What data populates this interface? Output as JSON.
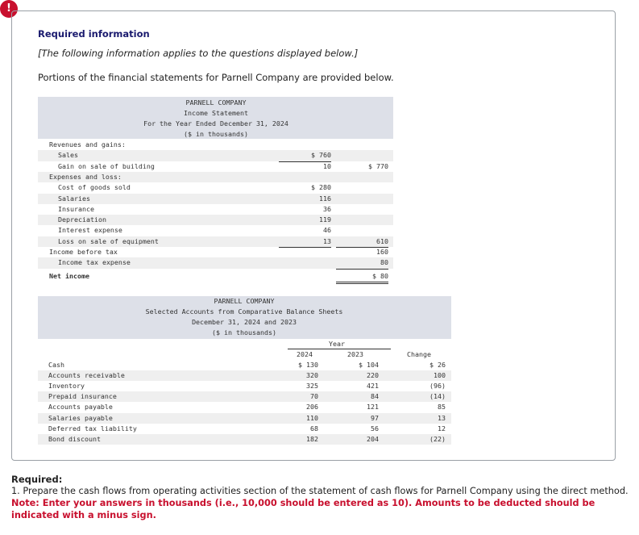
{
  "icon": "!",
  "heading": "Required information",
  "intro": "[The following information applies to the questions displayed below.]",
  "lead": "Portions of the financial statements for Parnell Company are provided below.",
  "income_statement": {
    "title": [
      "PARNELL COMPANY",
      "Income Statement",
      "For the Year Ended December 31, 2024",
      "($ in thousands)"
    ],
    "rows": [
      {
        "label": "Revenues and gains:"
      },
      {
        "label": "Sales",
        "amount": "$ 760"
      },
      {
        "label": "Gain on sale of building",
        "amount": "10",
        "total": "$ 770"
      },
      {
        "label": "Expenses and loss:"
      },
      {
        "label": "Cost of goods sold",
        "amount": "$ 280"
      },
      {
        "label": "Salaries",
        "amount": "116"
      },
      {
        "label": "Insurance",
        "amount": "36"
      },
      {
        "label": "Depreciation",
        "amount": "119"
      },
      {
        "label": "Interest expense",
        "amount": "46"
      },
      {
        "label": "Loss on sale of equipment",
        "amount": "13",
        "total": "610"
      },
      {
        "label": "Income before tax",
        "total": "160"
      },
      {
        "label": "Income tax expense",
        "total": "80"
      },
      {
        "label": "Net income",
        "total": "$ 80"
      }
    ]
  },
  "balance_sheet": {
    "title": [
      "PARNELL COMPANY",
      "Selected Accounts from Comparative Balance Sheets",
      "December 31, 2024 and 2023",
      "($ in thousands)"
    ],
    "year_header": "Year",
    "columns": [
      "2024",
      "2023",
      "Change"
    ],
    "rows": [
      [
        "Cash",
        "$ 130",
        "$ 104",
        "$ 26"
      ],
      [
        "Accounts receivable",
        "320",
        "220",
        "100"
      ],
      [
        "Inventory",
        "325",
        "421",
        "(96)"
      ],
      [
        "Prepaid insurance",
        "70",
        "84",
        "(14)"
      ],
      [
        "Accounts payable",
        "206",
        "121",
        "85"
      ],
      [
        "Salaries payable",
        "110",
        "97",
        "13"
      ],
      [
        "Deferred tax liability",
        "68",
        "56",
        "12"
      ],
      [
        "Bond discount",
        "182",
        "204",
        "(22)"
      ]
    ]
  },
  "required": {
    "heading": "Required:",
    "task": "1. Prepare the cash flows from operating activities section of the statement of cash flows for Parnell Company using the direct method.",
    "note": "Note: Enter your answers in thousands (i.e., 10,000 should be entered as 10). Amounts to be deducted should be indicated with a minus sign."
  }
}
